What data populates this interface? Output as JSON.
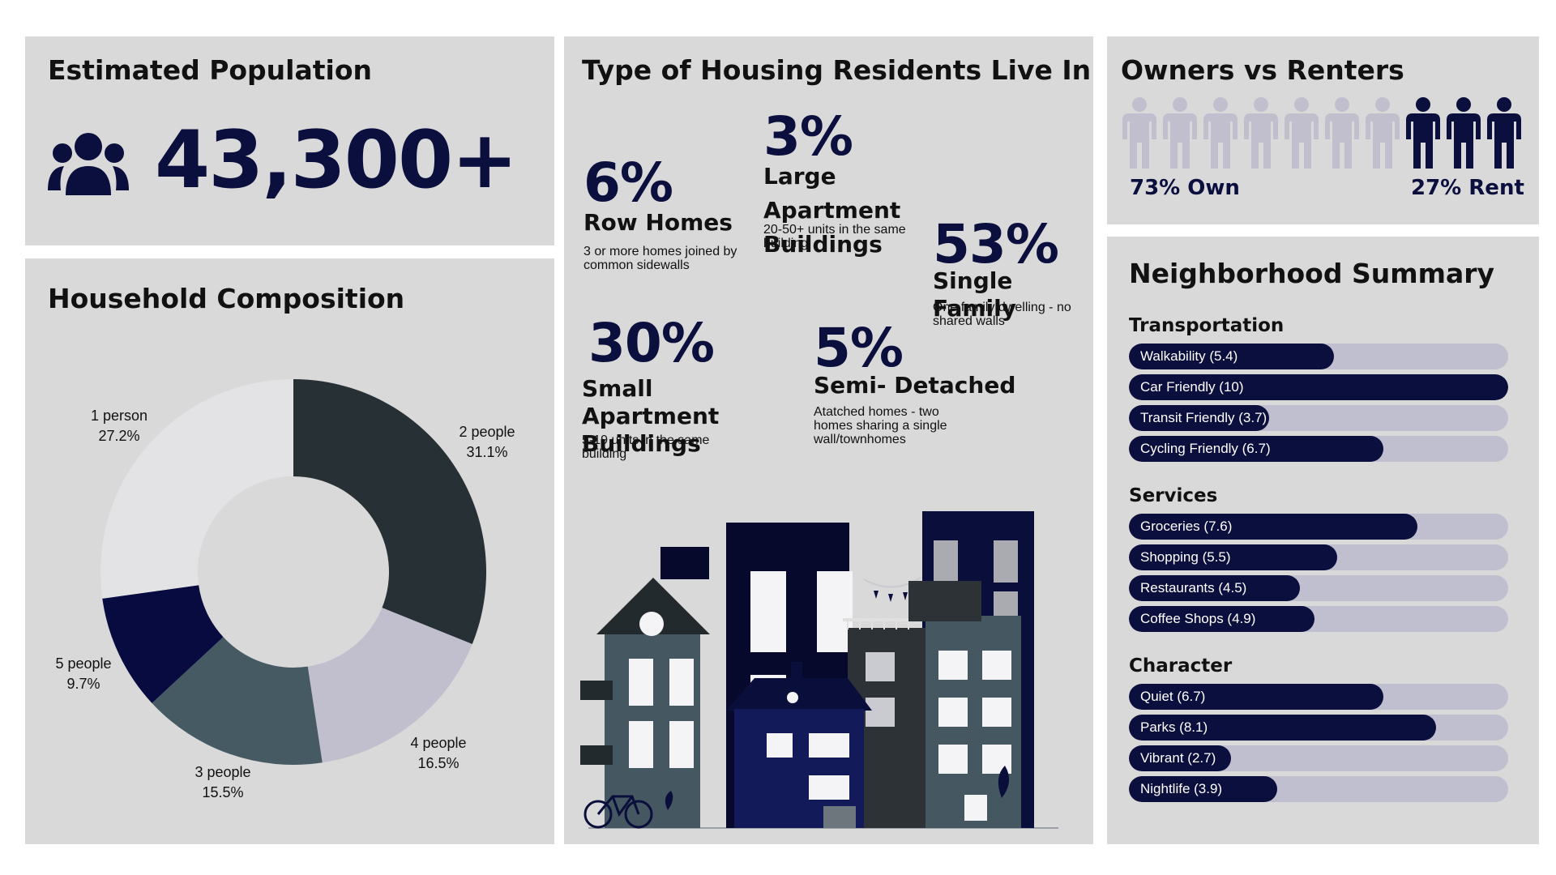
{
  "population": {
    "title": "Estimated Population",
    "value": "43,300+",
    "icon": "people-group-icon"
  },
  "household": {
    "title": "Household Composition"
  },
  "chart_data": {
    "type": "pie",
    "donut": true,
    "slices": [
      {
        "label": "2 people",
        "pct_text": "31.1%",
        "value": 31.1,
        "color": "#263035"
      },
      {
        "label": "4 people",
        "pct_text": "16.5%",
        "value": 16.5,
        "color": "#c1bfce"
      },
      {
        "label": "3 people",
        "pct_text": "15.5%",
        "value": 15.5,
        "color": "#465a64"
      },
      {
        "label": "5 people",
        "pct_text": "9.7%",
        "value": 9.7,
        "color": "#070b3f"
      },
      {
        "label": "1 person",
        "pct_text": "27.2%",
        "value": 27.2,
        "color": "#e3e3e6"
      }
    ]
  },
  "housing": {
    "title": "Type of Housing Residents Live In",
    "types": [
      {
        "pct": "6%",
        "name": "Row Homes",
        "desc": "3 or more homes joined by common sidewalls"
      },
      {
        "pct": "3%",
        "name": "Large Apartment Buildings",
        "desc": "20-50+ units in the same building"
      },
      {
        "pct": "53%",
        "name": "Single Family",
        "desc": "One family dwelling - no shared walls"
      },
      {
        "pct": "30%",
        "name": "Small Apartment Buildings",
        "desc": "5-19 units in the same building"
      },
      {
        "pct": "5%",
        "name": "Semi- Detached",
        "desc": "Atatched homes - two homes sharing a single wall/townhomes"
      }
    ]
  },
  "owners": {
    "title": "Owners vs Renters",
    "own_label": "73% Own",
    "rent_label": "27% Rent",
    "own_fraction": 0.73,
    "icons_total": 10,
    "icons_rent": 3,
    "colors": {
      "own": "#c1bfce",
      "rent": "#0b0f3d"
    }
  },
  "summary": {
    "title": "Neighborhood Summary",
    "max_score": 10,
    "sections": [
      {
        "title": "Transportation",
        "items": [
          {
            "label": "Walkability (5.4)",
            "score": 5.4
          },
          {
            "label": "Car Friendly (10)",
            "score": 10
          },
          {
            "label": "Transit Friendly (3.7)",
            "score": 3.7
          },
          {
            "label": "Cycling Friendly (6.7)",
            "score": 6.7
          }
        ]
      },
      {
        "title": "Services",
        "items": [
          {
            "label": "Groceries (7.6)",
            "score": 7.6
          },
          {
            "label": "Shopping (5.5)",
            "score": 5.5
          },
          {
            "label": "Restaurants (4.5)",
            "score": 4.5
          },
          {
            "label": "Coffee Shops (4.9)",
            "score": 4.9
          }
        ]
      },
      {
        "title": "Character",
        "items": [
          {
            "label": "Quiet (6.7)",
            "score": 6.7
          },
          {
            "label": "Parks (8.1)",
            "score": 8.1
          },
          {
            "label": "Vibrant (2.7)",
            "score": 2.7
          },
          {
            "label": "Nightlife (3.9)",
            "score": 3.9
          }
        ]
      }
    ]
  },
  "illustration": {
    "icon": "city-buildings-illustration"
  }
}
